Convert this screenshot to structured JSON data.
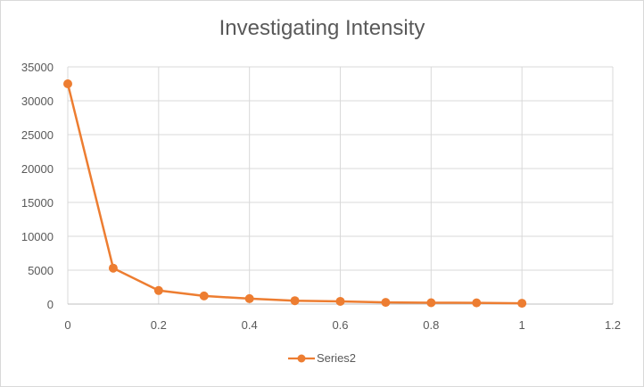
{
  "chart_data": {
    "type": "scatter",
    "title": "Investigating Intensity",
    "xlabel": "",
    "ylabel": "",
    "xlim": [
      0,
      1.2
    ],
    "ylim": [
      0,
      35000
    ],
    "xticks": [
      "0",
      "0.2",
      "0.4",
      "0.6",
      "0.8",
      "1",
      "1.2"
    ],
    "yticks": [
      "0",
      "5000",
      "10000",
      "15000",
      "20000",
      "25000",
      "30000",
      "35000"
    ],
    "grid": "vertical and horizontal",
    "legend_position": "bottom",
    "series": [
      {
        "name": "Series2",
        "color": "#ed7d31",
        "marker": "circle",
        "line": true,
        "x": [
          0,
          0.1,
          0.2,
          0.3,
          0.4,
          0.5,
          0.6,
          0.7,
          0.8,
          0.9,
          1.0
        ],
        "y": [
          32500,
          5300,
          2000,
          1200,
          800,
          500,
          400,
          250,
          200,
          180,
          120
        ]
      }
    ]
  }
}
